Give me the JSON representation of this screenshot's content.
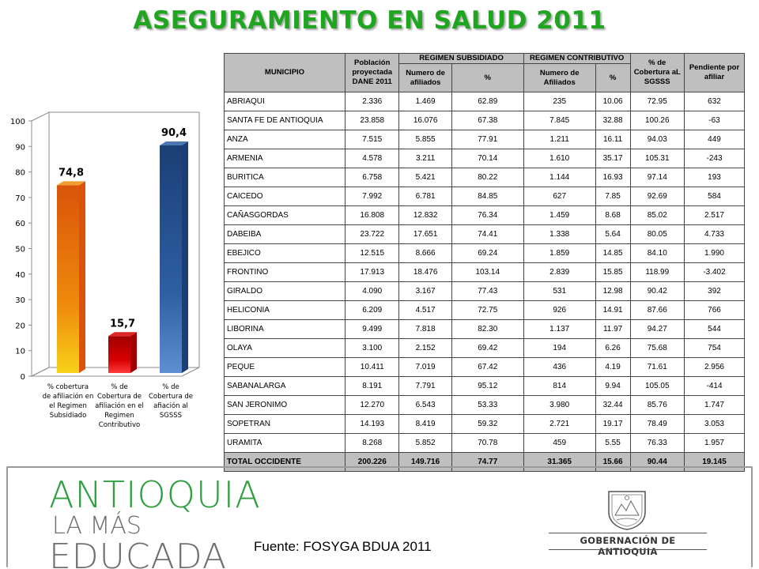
{
  "title": "ASEGURAMIENTO EN SALUD 2011",
  "chart_data": {
    "type": "bar",
    "categories": [
      "% cobertura de afiliación en el Regimen Subsidiado",
      "% de Cobertura de afiliación en el Regimen Contributivo",
      "% de Cobertura de afiación al SGSSS"
    ],
    "category_lines": [
      [
        "% cobertura",
        "de afiliación en",
        "el Regimen",
        "Subsidiado"
      ],
      [
        "% de",
        "Cobertura de",
        "afiliación en el",
        "Regimen",
        "Contributivo"
      ],
      [
        "% de",
        "Cobertura de",
        "afiación al",
        "SGSSS"
      ]
    ],
    "values": [
      74.8,
      15.7,
      90.4
    ],
    "data_labels": [
      "74,8",
      "15,7",
      "90,4"
    ],
    "ylim": [
      0,
      100
    ],
    "yticks": [
      "0",
      "10",
      "20",
      "30",
      "40",
      "50",
      "60",
      "70",
      "80",
      "90",
      "100"
    ],
    "colors": [
      "#e8720c",
      "#d40000",
      "#2e5fa3"
    ],
    "grid": false,
    "legend": "none"
  },
  "table": {
    "headers": {
      "municipio": "MUNICIPIO",
      "poblacion": "Población proyectada DANE 2011",
      "subsidiado": "REGIMEN SUBSIDIADO",
      "contributivo": "REGIMEN CONTRIBUTIVO",
      "cobertura": "% de Cobertura aL SGSSS",
      "pendiente": "Pendiente por afiliar",
      "num_afiliados_sub": "Numero de afiliados",
      "pct_sub": "%",
      "num_afiliados_con": "Numero de Afiliados",
      "pct_con": "%"
    },
    "rows": [
      [
        "ABRIAQUI",
        "2.336",
        "1.469",
        "62.89",
        "235",
        "10.06",
        "72.95",
        "632"
      ],
      [
        "SANTA FE DE ANTIOQUIA",
        "23.858",
        "16.076",
        "67.38",
        "7.845",
        "32.88",
        "100.26",
        "-63"
      ],
      [
        "ANZA",
        "7.515",
        "5.855",
        "77.91",
        "1.211",
        "16.11",
        "94.03",
        "449"
      ],
      [
        "ARMENIA",
        "4.578",
        "3.211",
        "70.14",
        "1.610",
        "35.17",
        "105.31",
        "-243"
      ],
      [
        "BURITICA",
        "6.758",
        "5.421",
        "80.22",
        "1.144",
        "16.93",
        "97.14",
        "193"
      ],
      [
        "CAICEDO",
        "7.992",
        "6.781",
        "84.85",
        "627",
        "7.85",
        "92.69",
        "584"
      ],
      [
        "CAÑASGORDAS",
        "16.808",
        "12.832",
        "76.34",
        "1.459",
        "8.68",
        "85.02",
        "2.517"
      ],
      [
        "DABEIBA",
        "23.722",
        "17.651",
        "74.41",
        "1.338",
        "5.64",
        "80.05",
        "4.733"
      ],
      [
        "EBEJICO",
        "12.515",
        "8.666",
        "69.24",
        "1.859",
        "14.85",
        "84.10",
        "1.990"
      ],
      [
        "FRONTINO",
        "17.913",
        "18.476",
        "103.14",
        "2.839",
        "15.85",
        "118.99",
        "-3.402"
      ],
      [
        "GIRALDO",
        "4.090",
        "3.167",
        "77.43",
        "531",
        "12.98",
        "90.42",
        "392"
      ],
      [
        "HELICONIA",
        "6.209",
        "4.517",
        "72.75",
        "926",
        "14.91",
        "87.66",
        "766"
      ],
      [
        "LIBORINA",
        "9.499",
        "7.818",
        "82.30",
        "1.137",
        "11.97",
        "94.27",
        "544"
      ],
      [
        "OLAYA",
        "3.100",
        "2.152",
        "69.42",
        "194",
        "6.26",
        "75.68",
        "754"
      ],
      [
        "PEQUE",
        "10.411",
        "7.019",
        "67.42",
        "436",
        "4.19",
        "71.61",
        "2.956"
      ],
      [
        "SABANALARGA",
        "8.191",
        "7.791",
        "95.12",
        "814",
        "9.94",
        "105.05",
        "-414"
      ],
      [
        "SAN JERONIMO",
        "12.270",
        "6.543",
        "53.33",
        "3.980",
        "32.44",
        "85.76",
        "1.747"
      ],
      [
        "SOPETRAN",
        "14.193",
        "8.419",
        "59.32",
        "2.721",
        "19.17",
        "78.49",
        "3.053"
      ],
      [
        "URAMITA",
        "8.268",
        "5.852",
        "70.78",
        "459",
        "5.55",
        "76.33",
        "1.957"
      ]
    ],
    "total": [
      "TOTAL OCCIDENTE",
      "200.226",
      "149.716",
      "74.77",
      "31.365",
      "15.66",
      "90.44",
      "19.145"
    ]
  },
  "footer": {
    "logo_line1": "ANTIOQUIA",
    "logo_line2": "LA MÁS",
    "logo_line3": "EDUCADA",
    "source": "Fuente: FOSYGA BDUA 2011",
    "government": "GOBERNACIÓN DE ANTIOQUIA"
  }
}
